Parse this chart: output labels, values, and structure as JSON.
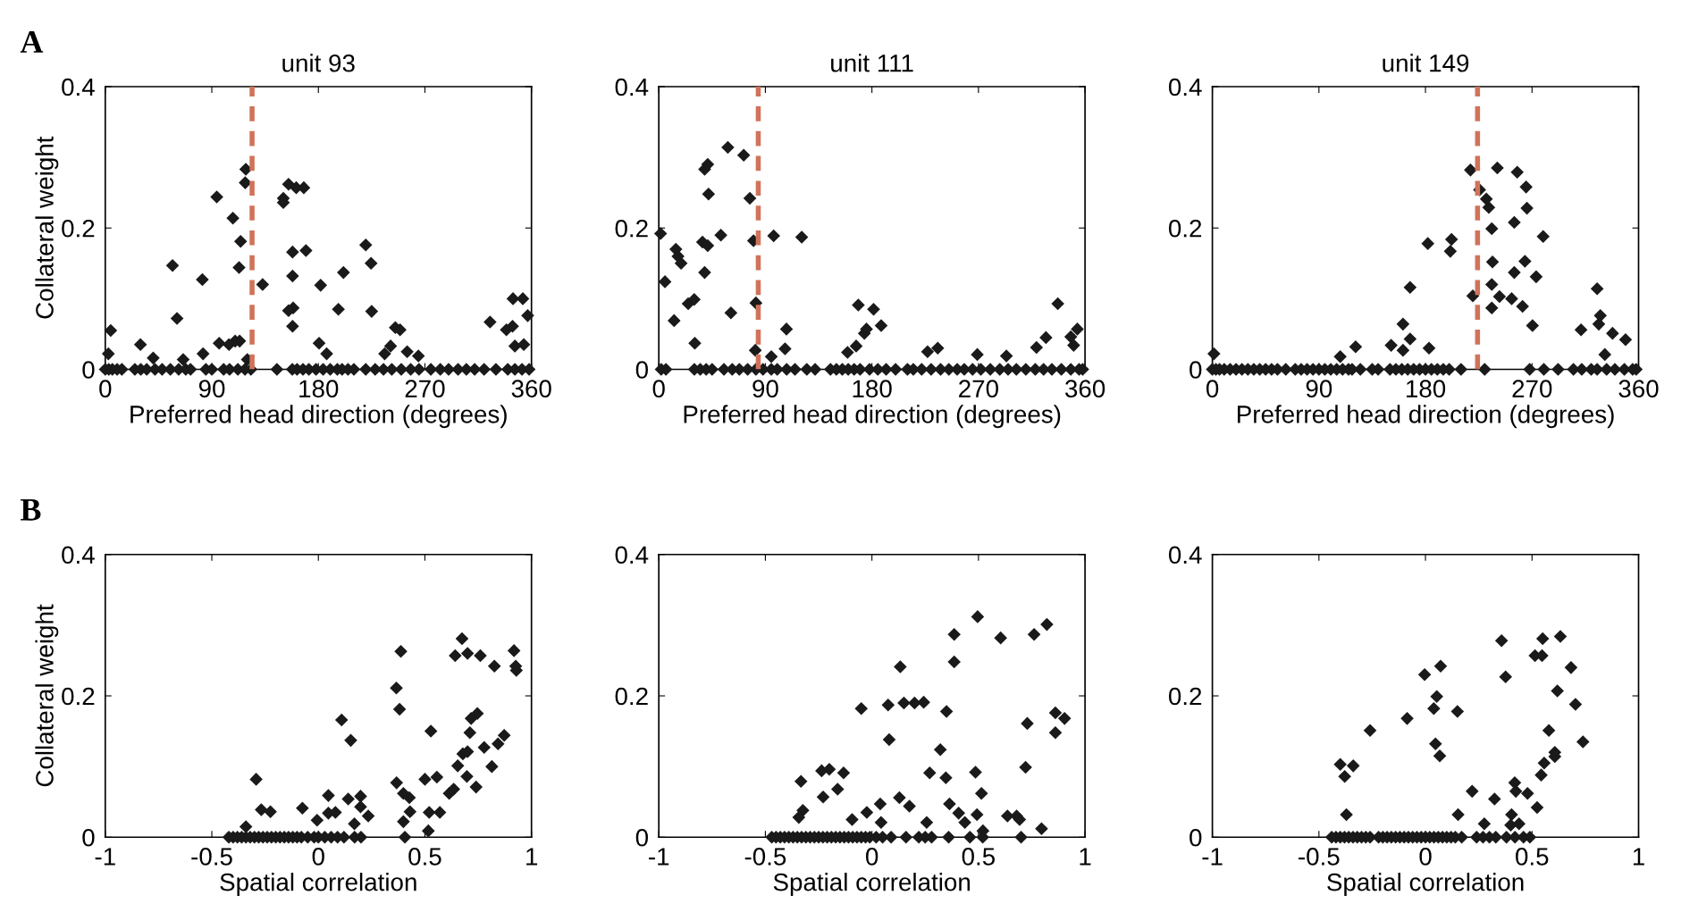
{
  "chart_data": [
    {
      "type": "scatter",
      "title": "unit 93",
      "xlabel": "Preferred head direction (degrees)",
      "ylabel": "Collateral weight",
      "annotations": [
        "A"
      ],
      "marker": "diamond",
      "xlim": [
        0,
        360
      ],
      "ylim": [
        0,
        0.4
      ],
      "xticks": [
        0,
        90,
        180,
        270,
        360
      ],
      "yticks": [
        0,
        0.2,
        0.4
      ],
      "ref_lines": [
        {
          "axis": "x",
          "value": 124,
          "color": "#d0735a",
          "line_style": "dashed"
        }
      ],
      "series": [
        {
          "color": "#1a1a1a",
          "x": [
            4.6,
            2.6,
            29.7,
            40.5,
            56.8,
            60.6,
            65.8,
            82,
            82.6,
            94.2,
            96.2,
            104.5,
            107.8,
            109.7,
            113.5,
            114.3,
            113,
            118.7,
            118.2,
            120,
            132.9,
            150.4,
            150.4,
            154.8,
            161.3,
            167.7,
            158.2,
            169.5,
            158.2,
            158.7,
            154.8,
            158.2,
            180.6,
            187,
            181.9,
            196.9,
            201.2,
            220,
            224.5,
            225,
            236,
            241,
            245,
            249,
            255,
            264.5,
            325,
            338.8,
            344,
            344.4,
            352.7,
            346,
            353.5,
            356.8
          ],
          "values": [
            0.055,
            0.022,
            0.035,
            0.016,
            0.147,
            0.072,
            0.014,
            0.127,
            0.022,
            0.244,
            0.037,
            0.035,
            0.214,
            0.04,
            0.04,
            0.181,
            0.144,
            0.283,
            0.264,
            0.014,
            0.12,
            0.242,
            0.236,
            0.262,
            0.257,
            0.257,
            0.166,
            0.168,
            0.132,
            0.087,
            0.083,
            0.061,
            0.037,
            0.022,
            0.119,
            0.085,
            0.137,
            0.176,
            0.15,
            0.082,
            0.022,
            0.033,
            0.059,
            0.056,
            0.025,
            0.019,
            0.067,
            0.056,
            0.061,
            0.1,
            0.1,
            0.033,
            0.035,
            0.076
          ]
        },
        {
          "color": "#1a1a1a",
          "x": [
            0,
            3,
            6,
            10,
            14,
            25,
            30,
            35,
            42,
            48,
            55,
            62,
            68,
            72,
            85,
            90,
            100,
            105,
            112,
            118,
            123,
            145,
            158,
            162,
            167,
            172,
            178,
            184,
            190,
            196,
            200,
            205,
            210,
            220,
            228,
            235,
            242,
            250,
            258,
            265,
            275,
            283,
            290,
            298,
            305,
            312,
            320,
            330,
            340,
            346,
            352,
            358
          ],
          "values": [
            0,
            0,
            0,
            0,
            0,
            0,
            0,
            0,
            0,
            0,
            0,
            0,
            0,
            0,
            0,
            0,
            0,
            0,
            0,
            0,
            0,
            0,
            0,
            0,
            0,
            0,
            0,
            0,
            0,
            0,
            0,
            0,
            0,
            0,
            0,
            0,
            0,
            0,
            0,
            0,
            0,
            0,
            0,
            0,
            0,
            0,
            0,
            0,
            0,
            0,
            0,
            0
          ]
        }
      ]
    },
    {
      "type": "scatter",
      "title": "unit 111",
      "xlabel": "Preferred head direction (degrees)",
      "marker": "diamond",
      "xlim": [
        0,
        360
      ],
      "ylim": [
        0,
        0.4
      ],
      "xticks": [
        0,
        90,
        180,
        270,
        360
      ],
      "yticks": [
        0,
        0.2,
        0.4
      ],
      "ref_lines": [
        {
          "axis": "x",
          "value": 84,
          "color": "#d0735a",
          "line_style": "dashed"
        }
      ],
      "series": [
        {
          "color": "#1a1a1a",
          "x": [
            1.5,
            5.2,
            12.9,
            14.4,
            16.2,
            18.8,
            24.8,
            29.9,
            30.4,
            36.9,
            41.3,
            38.7,
            38.7,
            41.3,
            42,
            52.4,
            58.3,
            60.9,
            71.7,
            76.9,
            80,
            82,
            81.5,
            97,
            107.8,
            106.6,
            95,
            120.7,
            159.4,
            166.7,
            173.6,
            175.4,
            168.5,
            181.4,
            187.8,
            227,
            235.6,
            269,
            293.6,
            319,
            327,
            337,
            348,
            353.5,
            350.4
          ],
          "values": [
            0.192,
            0.124,
            0.069,
            0.17,
            0.16,
            0.15,
            0.093,
            0.099,
            0.037,
            0.18,
            0.175,
            0.137,
            0.283,
            0.29,
            0.248,
            0.19,
            0.314,
            0.08,
            0.303,
            0.242,
            0.182,
            0.094,
            0.027,
            0.189,
            0.057,
            0.029,
            0.018,
            0.187,
            0.024,
            0.033,
            0.051,
            0.057,
            0.091,
            0.085,
            0.062,
            0.025,
            0.03,
            0.021,
            0.019,
            0.031,
            0.045,
            0.093,
            0.046,
            0.057,
            0.034
          ]
        },
        {
          "color": "#1a1a1a",
          "x": [
            2,
            6,
            30,
            35,
            40,
            45,
            55,
            62,
            68,
            75,
            82,
            88,
            95,
            100,
            108,
            115,
            125,
            132,
            145,
            150,
            155,
            160,
            165,
            170,
            178,
            185,
            192,
            200,
            210,
            215,
            222,
            230,
            238,
            245,
            252,
            258,
            265,
            272,
            280,
            288,
            295,
            302,
            310,
            318,
            325,
            332,
            340,
            348,
            355,
            358
          ],
          "values": [
            0,
            0,
            0,
            0,
            0,
            0,
            0,
            0,
            0,
            0,
            0,
            0,
            0,
            0,
            0,
            0,
            0,
            0,
            0,
            0,
            0,
            0,
            0,
            0,
            0,
            0,
            0,
            0,
            0,
            0,
            0,
            0,
            0,
            0,
            0,
            0,
            0,
            0,
            0,
            0,
            0,
            0,
            0,
            0,
            0,
            0,
            0,
            0,
            0,
            0
          ]
        }
      ]
    },
    {
      "type": "scatter",
      "title": "unit 149",
      "xlabel": "Preferred head direction (degrees)",
      "marker": "diamond",
      "xlim": [
        0,
        360
      ],
      "ylim": [
        0,
        0.4
      ],
      "xticks": [
        0,
        90,
        180,
        270,
        360
      ],
      "yticks": [
        0,
        0.2,
        0.4
      ],
      "ref_lines": [
        {
          "axis": "x",
          "value": 224,
          "color": "#d0735a",
          "line_style": "dashed"
        }
      ],
      "series": [
        {
          "color": "#1a1a1a",
          "x": [
            1.3,
            108,
            121,
            151,
            161,
            167,
            161,
            167,
            180.6,
            183,
            182,
            202,
            201,
            218,
            220,
            225.7,
            231.4,
            233.5,
            236,
            240.7,
            236.6,
            236,
            236,
            242.5,
            252.8,
            255,
            257.5,
            255,
            264,
            265,
            265.7,
            262,
            273.5,
            270.4,
            279.4,
            311.4,
            325,
            327.7,
            326.4,
            331.5,
            338,
            349
          ],
          "values": [
            0.022,
            0.018,
            0.032,
            0.034,
            0.064,
            0.043,
            0.027,
            0.116,
            null,
            0.03,
            0.178,
            0.184,
            0.167,
            0.282,
            0.104,
            0.254,
            0.241,
            0.229,
            0.199,
            0.285,
            0.152,
            0.12,
            0.087,
            0.103,
            0.1,
            0.208,
            0.279,
            0.137,
            0.153,
            0.258,
            0.228,
            0.089,
            0.131,
            0.062,
            0.188,
            0.056,
            0.114,
            0.076,
            0.064,
            0.021,
            0.051,
            0.042
          ]
        },
        {
          "color": "#1a1a1a",
          "x": [
            0,
            3,
            6,
            10,
            15,
            20,
            25,
            30,
            35,
            40,
            45,
            50,
            55,
            62,
            70,
            75,
            80,
            85,
            90,
            95,
            100,
            105,
            110,
            115,
            118,
            125,
            135,
            140,
            150,
            155,
            160,
            165,
            170,
            175,
            180,
            185,
            190,
            195,
            200,
            210,
            230,
            268,
            280,
            292,
            305,
            312,
            320,
            325,
            333,
            340,
            348,
            355,
            358
          ],
          "values": [
            0,
            0,
            0,
            0,
            0,
            0,
            0,
            0,
            0,
            0,
            0,
            0,
            0,
            0,
            0,
            0,
            0,
            0,
            0,
            0,
            0,
            0,
            0,
            0,
            0,
            0,
            0,
            0,
            0,
            0,
            0,
            0,
            0,
            0,
            0,
            0,
            0,
            0,
            0,
            0,
            0,
            0,
            0,
            0,
            0,
            0,
            0,
            0,
            0,
            0,
            0,
            0,
            0
          ]
        }
      ]
    },
    {
      "type": "scatter",
      "xlabel": "Spatial correlation",
      "ylabel": "Collateral weight",
      "annotations": [
        "B"
      ],
      "marker": "diamond",
      "xlim": [
        -1,
        1
      ],
      "ylim": [
        0,
        0.4
      ],
      "xticks": [
        -1,
        -0.5,
        0,
        0.5,
        1
      ],
      "yticks": [
        0,
        0.2,
        0.4
      ],
      "series": [
        {
          "color": "#1a1a1a",
          "x": [
            0.387,
            0.366,
            0.381,
            0.674,
            0.642,
            0.7,
            0.76,
            0.826,
            0.918,
            0.926,
            0.929,
            0.109,
            0.152,
            -0.292,
            -0.268,
            -0.225,
            -0.075,
            -0.006,
            0.047,
            0.047,
            0.08,
            0.14,
            0.198,
            0.198,
            0.234,
            0.169,
            0.367,
            0.399,
            0.427,
            0.43,
            0.399,
            0.516,
            0.52,
            0.57,
            0.5,
            0.556,
            0.528,
            0.614,
            0.635,
            0.654,
            0.697,
            0.74,
            0.678,
            0.7,
            0.711,
            0.717,
            0.746,
            0.778,
            0.814,
            0.843,
            0.872,
            -0.34
          ],
          "values": [
            0.263,
            0.211,
            0.181,
            0.281,
            0.257,
            0.26,
            0.257,
            0.242,
            0.264,
            0.242,
            0.236,
            0.166,
            0.137,
            0.082,
            0.039,
            0.036,
            0.041,
            0.024,
            0.059,
            0.034,
            0.035,
            0.054,
            0.058,
            0.043,
            0.03,
            0.019,
            0.077,
            0.062,
            0.056,
            0.036,
            0.022,
            0.009,
            0.035,
            0.035,
            0.082,
            0.085,
            0.15,
            0.062,
            0.068,
            0.101,
            0.086,
            0.071,
            0.118,
            0.121,
            0.148,
            0.168,
            0.175,
            0.127,
            0.1,
            0.132,
            0.144,
            0.015
          ]
        },
        {
          "color": "#1a1a1a",
          "x": [
            -0.42,
            -0.4,
            -0.38,
            -0.36,
            -0.34,
            -0.32,
            -0.3,
            -0.28,
            -0.26,
            -0.24,
            -0.22,
            -0.2,
            -0.18,
            -0.16,
            -0.14,
            -0.12,
            -0.1,
            -0.08,
            -0.05,
            -0.02,
            0,
            0.03,
            0.06,
            0.09,
            0.12,
            0.17,
            0.2,
            0.406
          ],
          "values": [
            0,
            0,
            0,
            0,
            0,
            0,
            0,
            0,
            0,
            0,
            0,
            0,
            0,
            0,
            0,
            0,
            0,
            0,
            0,
            0,
            0,
            0,
            0,
            0,
            0,
            0,
            0,
            0
          ]
        }
      ]
    },
    {
      "type": "scatter",
      "xlabel": "Spatial correlation",
      "marker": "diamond",
      "xlim": [
        -1,
        1
      ],
      "ylim": [
        0,
        0.4
      ],
      "xticks": [
        -1,
        -0.5,
        0,
        0.5,
        1
      ],
      "yticks": [
        0,
        0.2,
        0.4
      ],
      "series": [
        {
          "color": "#1a1a1a",
          "x": [
            0.496,
            0.386,
            0.386,
            0.604,
            0.761,
            0.821,
            0.133,
            -0.05,
            0.076,
            0.15,
            0.2,
            0.243,
            0.35,
            0.081,
            0.321,
            0.271,
            0.347,
            0.486,
            0.514,
            0.721,
            0.729,
            0.861,
            0.904,
            0.861,
            -0.333,
            -0.236,
            -0.2,
            -0.133,
            -0.229,
            -0.161,
            -0.324,
            -0.343,
            -0.093,
            -0.024,
            0.039,
            0.043,
            0.129,
            0.176,
            0.257,
            0.364,
            0.407,
            0.436,
            0.493,
            0.521,
            0.636,
            0.679,
            0.693,
            0.796
          ],
          "values": [
            0.312,
            0.287,
            0.248,
            0.282,
            0.287,
            0.301,
            0.241,
            0.182,
            0.187,
            0.19,
            0.19,
            0.191,
            0.178,
            0.138,
            0.124,
            0.091,
            0.084,
            0.092,
            0.062,
            0.099,
            0.161,
            0.176,
            0.168,
            0.148,
            0.079,
            0.094,
            0.096,
            0.091,
            0.057,
            0.068,
            0.038,
            0.028,
            0.025,
            0.035,
            0.047,
            0.021,
            0.056,
            0.044,
            0.021,
            0.047,
            0.034,
            0.021,
            0.032,
            0.009,
            0.03,
            0.03,
            0.025,
            0.012
          ]
        },
        {
          "color": "#1a1a1a",
          "x": [
            -0.47,
            -0.45,
            -0.43,
            -0.41,
            -0.39,
            -0.37,
            -0.35,
            -0.33,
            -0.31,
            -0.29,
            -0.27,
            -0.25,
            -0.23,
            -0.21,
            -0.19,
            -0.17,
            -0.15,
            -0.13,
            -0.11,
            -0.09,
            -0.07,
            -0.05,
            -0.03,
            -0.01,
            0.02,
            0.05,
            0.09,
            0.16,
            0.22,
            0.25,
            0.28,
            0.36,
            0.46,
            0.52,
            0.7
          ],
          "values": [
            0,
            0,
            0,
            0,
            0,
            0,
            0,
            0,
            0,
            0,
            0,
            0,
            0,
            0,
            0,
            0,
            0,
            0,
            0,
            0,
            0,
            0,
            0,
            0,
            0,
            0,
            0,
            0,
            0,
            0,
            0,
            0,
            0,
            0,
            0
          ]
        }
      ]
    },
    {
      "type": "scatter",
      "xlabel": "Spatial correlation",
      "marker": "diamond",
      "xlim": [
        -1,
        1
      ],
      "ylim": [
        0,
        0.4
      ],
      "xticks": [
        -1,
        -0.5,
        0,
        0.5,
        1
      ],
      "yticks": [
        0,
        0.2,
        0.4
      ],
      "series": [
        {
          "color": "#1a1a1a",
          "x": [
            0.357,
            0.55,
            0.633,
            0.514,
            0.547,
            0.376,
            0.683,
            0.619,
            0.704,
            0.579,
            0.739,
            0.607,
            0.607,
            0.557,
            0.543,
            0.419,
            0.424,
            0.479,
            0.524,
            0.324,
            0.219,
            0.404,
            0.4,
            0.439,
            0.276,
            0.153,
            -0.004,
            0.071,
            0.053,
            0.039,
            0.15,
            -0.086,
            -0.26,
            0.047,
            0.067,
            -0.4,
            -0.339,
            -0.379,
            -0.371
          ],
          "values": [
            0.278,
            0.281,
            0.284,
            0.257,
            0.257,
            0.227,
            0.24,
            0.207,
            0.188,
            0.151,
            0.135,
            0.12,
            0.114,
            0.105,
            0.088,
            0.077,
            0.065,
            0.062,
            0.042,
            0.054,
            0.065,
            0.032,
            0.017,
            0.019,
            0.019,
            0.032,
            0.23,
            0.242,
            0.199,
            0.182,
            0.178,
            0.168,
            0.151,
            0.132,
            0.115,
            0.103,
            0.101,
            0.086,
            0.032
          ]
        },
        {
          "color": "#1a1a1a",
          "x": [
            -0.44,
            -0.42,
            -0.4,
            -0.38,
            -0.36,
            -0.34,
            -0.32,
            -0.3,
            -0.28,
            -0.26,
            -0.22,
            -0.2,
            -0.18,
            -0.16,
            -0.14,
            -0.12,
            -0.1,
            -0.08,
            -0.06,
            -0.04,
            -0.02,
            0,
            0.02,
            0.04,
            0.06,
            0.08,
            0.1,
            0.12,
            0.14,
            0.17,
            0.24,
            0.27,
            0.3,
            0.33,
            0.38,
            0.42,
            0.46,
            0.49
          ],
          "values": [
            0,
            0,
            0,
            0,
            0,
            0,
            0,
            0,
            0,
            0,
            0,
            0,
            0,
            0,
            0,
            0,
            0,
            0,
            0,
            0,
            0,
            0,
            0,
            0,
            0,
            0,
            0,
            0,
            0,
            0,
            0,
            0,
            0,
            0,
            0,
            0,
            0,
            0
          ]
        }
      ]
    }
  ]
}
